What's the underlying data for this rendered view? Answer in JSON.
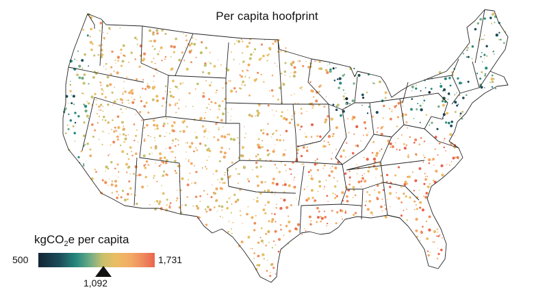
{
  "map": {
    "title": "Per capita hoofprint",
    "region_name": "Contiguous United States",
    "colors": {
      "ocean": "#ffffff",
      "land": "#ffffff",
      "border": "#222222",
      "scale": [
        "#142536",
        "#1b4c58",
        "#278a7f",
        "#73ad86",
        "#c7c06d",
        "#ecbd64",
        "#f3a964",
        "#ee8a5c",
        "#e9654f"
      ]
    }
  },
  "legend": {
    "label_main": "kgCO",
    "label_sub": "2",
    "label_tail": "e per capita",
    "min": "500",
    "max": "1,731",
    "median": "1,092"
  }
}
